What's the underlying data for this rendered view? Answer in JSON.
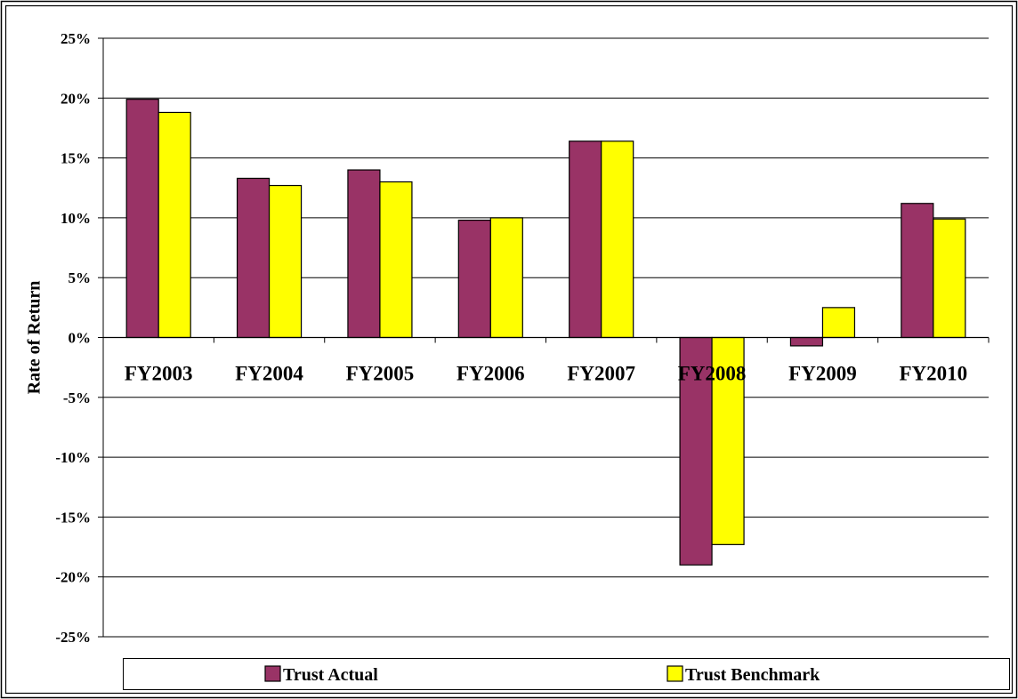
{
  "chart_data": {
    "type": "bar",
    "title": "",
    "xlabel": "",
    "ylabel": "Rate of Return",
    "categories": [
      "FY2003",
      "FY2004",
      "FY2005",
      "FY2006",
      "FY2007",
      "FY2008",
      "FY2009",
      "FY2010"
    ],
    "series": [
      {
        "name": "Trust Actual",
        "color": "#993366",
        "values": [
          19.9,
          13.3,
          14.0,
          9.8,
          16.4,
          -19.0,
          -0.7,
          11.2
        ]
      },
      {
        "name": "Trust Benchmark",
        "color": "#FFFF00",
        "values": [
          18.8,
          12.7,
          13.0,
          10.0,
          16.4,
          -17.3,
          2.5,
          9.9
        ]
      }
    ],
    "ylim": [
      -25,
      25
    ],
    "yticks": [
      25,
      20,
      15,
      10,
      5,
      0,
      -5,
      -10,
      -15,
      -20,
      -25
    ],
    "ytick_labels": [
      "25%",
      "20%",
      "15%",
      "10%",
      "5%",
      "0%",
      "-5%",
      "-10%",
      "-15%",
      "-20%",
      "-25%"
    ],
    "grid": true,
    "legend": "bottom"
  }
}
